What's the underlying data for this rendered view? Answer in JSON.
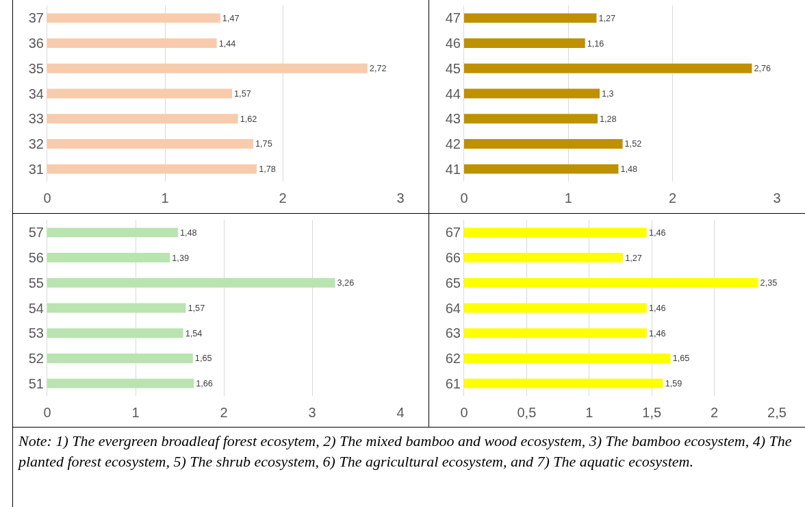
{
  "chart_data": [
    {
      "type": "bar",
      "orientation": "horizontal",
      "categories": [
        "37",
        "36",
        "35",
        "34",
        "33",
        "32",
        "31"
      ],
      "values": [
        1.47,
        1.44,
        2.72,
        1.57,
        1.62,
        1.75,
        1.78
      ],
      "value_labels": [
        "1,47",
        "1,44",
        "2,72",
        "1,57",
        "1,62",
        "1,75",
        "1,78"
      ],
      "color": "#f8cbad",
      "xlim": [
        0,
        3
      ],
      "xticks": [
        0,
        1,
        2,
        3
      ],
      "grid": "x"
    },
    {
      "type": "bar",
      "orientation": "horizontal",
      "categories": [
        "47",
        "46",
        "45",
        "44",
        "43",
        "42",
        "41"
      ],
      "values": [
        1.27,
        1.16,
        2.76,
        1.3,
        1.28,
        1.52,
        1.48
      ],
      "value_labels": [
        "1,27",
        "1,16",
        "2,76",
        "1,3",
        "1,28",
        "1,52",
        "1,48"
      ],
      "color": "#bf9000",
      "xlim": [
        0,
        3
      ],
      "xticks": [
        0,
        1,
        2,
        3
      ],
      "grid": "x"
    },
    {
      "type": "bar",
      "orientation": "horizontal",
      "categories": [
        "57",
        "56",
        "55",
        "54",
        "53",
        "52",
        "51"
      ],
      "values": [
        1.48,
        1.39,
        3.26,
        1.57,
        1.54,
        1.65,
        1.66
      ],
      "value_labels": [
        "1,48",
        "1,39",
        "3,26",
        "1,57",
        "1,54",
        "1,65",
        "1,66"
      ],
      "color": "#b9e4b0",
      "xlim": [
        0,
        4
      ],
      "xticks": [
        0,
        1,
        2,
        3,
        4
      ],
      "grid": "x"
    },
    {
      "type": "bar",
      "orientation": "horizontal",
      "categories": [
        "67",
        "66",
        "65",
        "64",
        "63",
        "62",
        "61"
      ],
      "values": [
        1.46,
        1.27,
        2.35,
        1.46,
        1.46,
        1.65,
        1.59
      ],
      "value_labels": [
        "1,46",
        "1,27",
        "2,35",
        "1,46",
        "1,46",
        "1,65",
        "1,59"
      ],
      "color": "#ffff00",
      "xlim": [
        0,
        2.5
      ],
      "xticks": [
        0,
        {
          "value": 0.5,
          "label": "0,5"
        },
        1,
        {
          "value": 1.5,
          "label": "1,5"
        },
        2,
        {
          "value": 2.5,
          "label": "2,5"
        }
      ],
      "grid": "x"
    },
    {
      "type": "other",
      "annotations": [
        "Note: 1) The evergreen broadleaf forest ecosytem, 2) The mixed bamboo and wood ecosystem, 3) The bamboo ecosystem, 4) The planted forest ecosystem, 5) The shrub ecosystem, 6) The agricultural ecosystem, and 7) The aquatic ecosystem."
      ]
    }
  ]
}
